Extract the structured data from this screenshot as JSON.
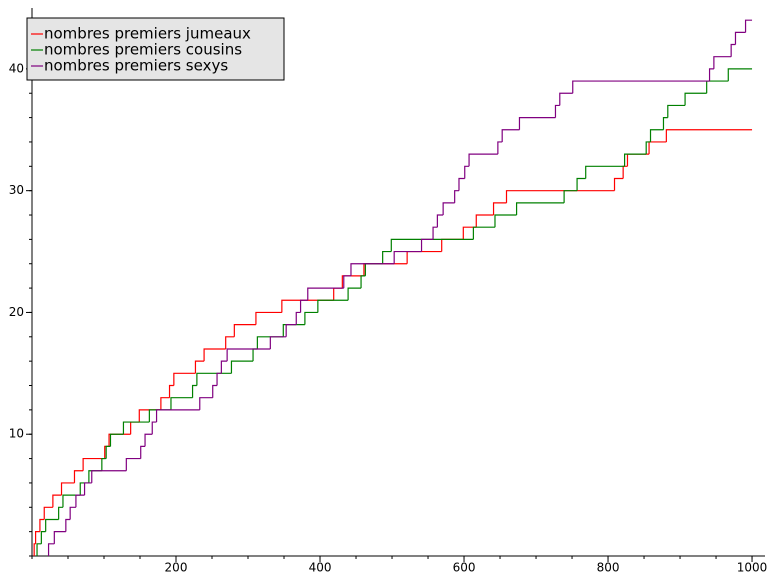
{
  "chart_data": {
    "type": "step",
    "xlim": [
      0,
      1018
    ],
    "ylim": [
      0,
      45
    ],
    "xticks": [
      200,
      400,
      600,
      800,
      1000
    ],
    "yticks": [
      10,
      20,
      30,
      40
    ],
    "legend": "upper left",
    "series": [
      {
        "name": "nombres premiers jumeaux",
        "color": "#ff0000",
        "x": [
          3,
          5,
          11,
          17,
          29,
          41,
          59,
          71,
          101,
          107,
          137,
          149,
          179,
          191,
          197,
          227,
          239,
          269,
          281,
          311,
          347,
          419,
          431,
          461,
          521,
          569,
          599,
          617,
          641,
          659,
          809,
          821,
          827,
          857,
          881,
          1000
        ],
        "values": [
          1,
          2,
          3,
          4,
          5,
          6,
          7,
          8,
          9,
          10,
          11,
          12,
          13,
          14,
          15,
          16,
          17,
          18,
          19,
          20,
          21,
          22,
          23,
          24,
          25,
          26,
          27,
          28,
          29,
          30,
          31,
          32,
          33,
          34,
          35,
          35
        ]
      },
      {
        "name": "nombres premiers cousins",
        "color": "#008000",
        "x": [
          7,
          13,
          19,
          37,
          43,
          67,
          79,
          97,
          103,
          109,
          127,
          163,
          193,
          223,
          229,
          277,
          307,
          313,
          349,
          379,
          397,
          439,
          457,
          463,
          487,
          499,
          613,
          643,
          673,
          739,
          757,
          769,
          823,
          853,
          859,
          877,
          883,
          907,
          937,
          967,
          1000
        ],
        "values": [
          1,
          2,
          3,
          4,
          5,
          6,
          7,
          8,
          9,
          10,
          11,
          12,
          13,
          14,
          15,
          16,
          17,
          18,
          19,
          20,
          21,
          22,
          23,
          24,
          25,
          26,
          27,
          28,
          29,
          30,
          31,
          32,
          33,
          34,
          35,
          36,
          37,
          38,
          39,
          40,
          40
        ]
      },
      {
        "name": "nombres premiers sexys",
        "color": "#800080",
        "x": [
          23,
          31,
          47,
          53,
          61,
          73,
          83,
          131,
          151,
          157,
          167,
          173,
          233,
          251,
          257,
          263,
          271,
          331,
          353,
          367,
          373,
          383,
          433,
          443,
          503,
          541,
          557,
          563,
          571,
          587,
          593,
          601,
          607,
          647,
          653,
          677,
          727,
          733,
          751,
          941,
          947,
          971,
          977,
          991,
          1000
        ],
        "values": [
          1,
          2,
          3,
          4,
          5,
          6,
          7,
          8,
          9,
          10,
          11,
          12,
          13,
          14,
          15,
          16,
          17,
          18,
          19,
          20,
          21,
          22,
          23,
          24,
          25,
          26,
          27,
          28,
          29,
          30,
          31,
          32,
          33,
          34,
          35,
          36,
          37,
          38,
          39,
          40,
          41,
          42,
          43,
          44,
          44
        ]
      }
    ]
  }
}
